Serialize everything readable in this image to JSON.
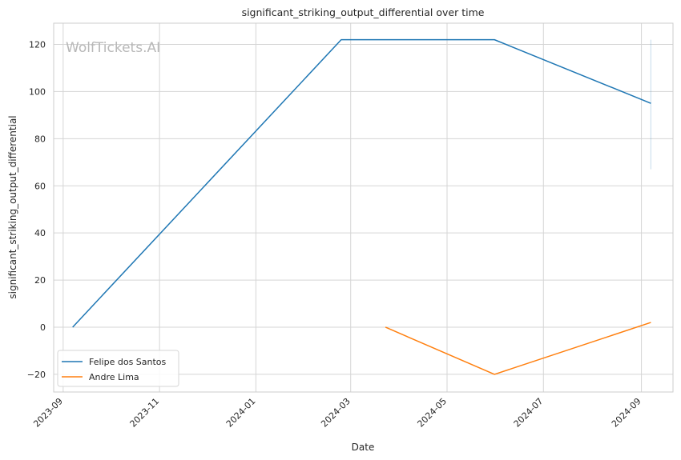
{
  "chart_data": {
    "type": "line",
    "title": "significant_striking_output_differential over time",
    "xlabel": "Date",
    "ylabel": "significant_striking_output_differential",
    "x_tick_labels": [
      "2023-09",
      "2023-11",
      "2024-01",
      "2024-03",
      "2024-05",
      "2024-07",
      "2024-09"
    ],
    "y_ticks": [
      -20,
      0,
      20,
      40,
      60,
      80,
      100,
      120
    ],
    "y_tick_labels": [
      "−20",
      "0",
      "20",
      "40",
      "60",
      "80",
      "100",
      "120"
    ],
    "ylim": [
      -27.5,
      129
    ],
    "xlim": [
      "2023-08-26",
      "2024-09-21"
    ],
    "grid": true,
    "legend_position": "lower-left",
    "watermark": "WolfTickets.AI",
    "series": [
      {
        "name": "Felipe dos Santos",
        "color": "#1f77b4",
        "points": [
          {
            "x": "2023-09-07",
            "y": 0
          },
          {
            "x": "2024-02-24",
            "y": 122
          },
          {
            "x": "2024-05-31",
            "y": 122
          },
          {
            "x": "2024-09-07",
            "y": 95
          }
        ],
        "band": {
          "x": "2024-09-07",
          "y_low": 67,
          "y_high": 122
        }
      },
      {
        "name": "Andre Lima",
        "color": "#ff7f0e",
        "points": [
          {
            "x": "2024-03-23",
            "y": 0
          },
          {
            "x": "2024-05-31",
            "y": -20
          },
          {
            "x": "2024-09-07",
            "y": 2
          }
        ]
      }
    ]
  }
}
